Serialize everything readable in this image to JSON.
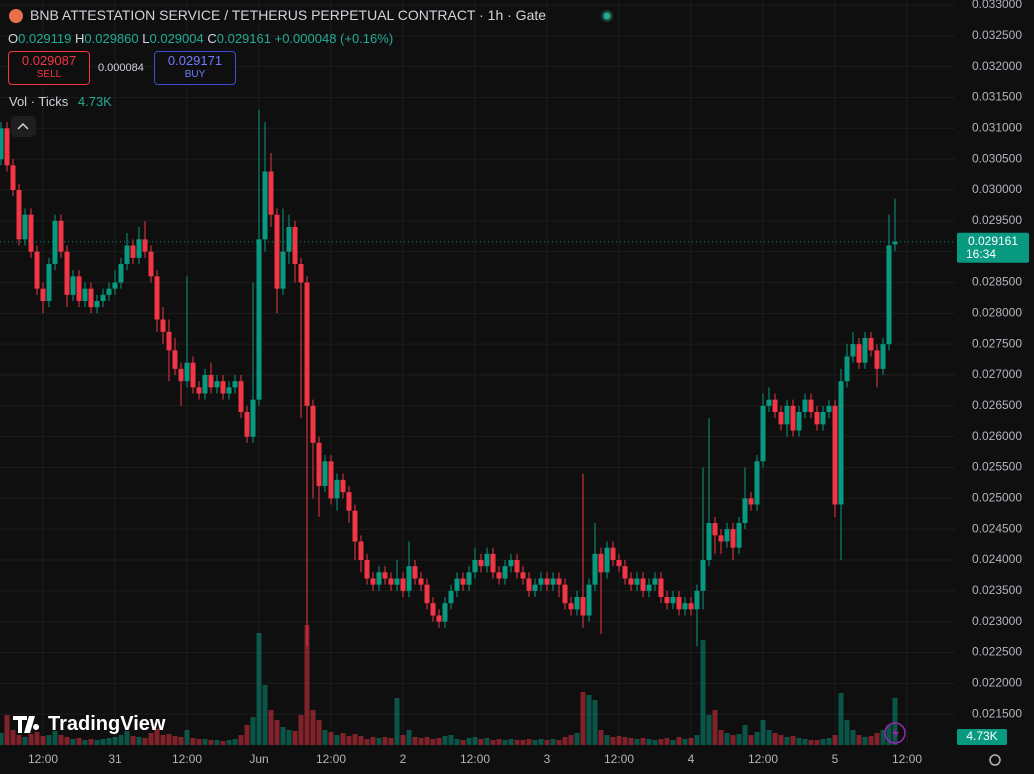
{
  "header": {
    "title": "BNB ATTESTATION SERVICE / TETHERUS PERPETUAL CONTRACT · 1h · Gate",
    "ohlc": {
      "o_label": "O",
      "o": "0.029119",
      "h_label": "H",
      "h": "0.029860",
      "l_label": "L",
      "l": "0.029004",
      "c_label": "C",
      "c": "0.029161",
      "change": "+0.000048 (+0.16%)"
    },
    "sell": {
      "price": "0.029087",
      "label": "SELL"
    },
    "spread": "0.000084",
    "buy": {
      "price": "0.029171",
      "label": "BUY"
    },
    "volume_indicator": "Vol · Ticks",
    "logo": "TradingView"
  },
  "chart_data": {
    "type": "candlestick",
    "up_color": "#089981",
    "down_color": "#f23645",
    "grid": true,
    "open": [
      0.0305,
      0.031,
      0.0304,
      0.03,
      0.0292,
      0.0296,
      0.029,
      0.0284,
      0.0282,
      0.0288,
      0.0295,
      0.029,
      0.0283,
      0.0286,
      0.0282,
      0.0284,
      0.0281,
      0.0282,
      0.0283,
      0.0284,
      0.0285,
      0.0288,
      0.0291,
      0.0289,
      0.0292,
      0.029,
      0.0286,
      0.0279,
      0.0277,
      0.0274,
      0.0271,
      0.0269,
      0.0272,
      0.0268,
      0.0267,
      0.027,
      0.0268,
      0.0269,
      0.0267,
      0.0268,
      0.0269,
      0.0264,
      0.026,
      0.0266,
      0.0292,
      0.0303,
      0.0296,
      0.0284,
      0.029,
      0.0294,
      0.0288,
      0.0285,
      0.0265,
      0.0259,
      0.0252,
      0.0256,
      0.025,
      0.0253,
      0.0251,
      0.0248,
      0.0243,
      0.024,
      0.0237,
      0.0236,
      0.0238,
      0.0237,
      0.0236,
      0.0237,
      0.0235,
      0.0239,
      0.0237,
      0.0236,
      0.0233,
      0.0231,
      0.023,
      0.0233,
      0.0235,
      0.0237,
      0.0236,
      0.0238,
      0.024,
      0.0239,
      0.0241,
      0.0238,
      0.0237,
      0.0239,
      0.024,
      0.0238,
      0.0237,
      0.0235,
      0.0236,
      0.0237,
      0.0236,
      0.0237,
      0.0236,
      0.0233,
      0.0232,
      0.0234,
      0.0231,
      0.0236,
      0.0241,
      0.0238,
      0.0242,
      0.024,
      0.0239,
      0.0237,
      0.0236,
      0.0237,
      0.0235,
      0.0236,
      0.0237,
      0.0234,
      0.0233,
      0.0234,
      0.0232,
      0.0233,
      0.0232,
      0.0235,
      0.024,
      0.0246,
      0.0244,
      0.0243,
      0.0245,
      0.0242,
      0.0246,
      0.025,
      0.0249,
      0.0256,
      0.0265,
      0.0266,
      0.0264,
      0.0262,
      0.0265,
      0.0261,
      0.0264,
      0.0266,
      0.0264,
      0.0262,
      0.0264,
      0.0265,
      0.0249,
      0.0269,
      0.0273,
      0.0275,
      0.0272,
      0.0276,
      0.0274,
      0.0271,
      0.0275,
      0.029119
    ],
    "high": [
      0.0311,
      0.0311,
      0.0305,
      0.0301,
      0.0297,
      0.0297,
      0.0291,
      0.0285,
      0.0289,
      0.0296,
      0.0296,
      0.0291,
      0.0287,
      0.0287,
      0.0285,
      0.0285,
      0.0283,
      0.0284,
      0.0285,
      0.0287,
      0.0289,
      0.0293,
      0.0292,
      0.0294,
      0.0295,
      0.0291,
      0.0287,
      0.0281,
      0.0279,
      0.0276,
      0.0272,
      0.0286,
      0.0273,
      0.0269,
      0.0271,
      0.0272,
      0.027,
      0.027,
      0.0269,
      0.027,
      0.027,
      0.0265,
      0.0285,
      0.0313,
      0.0311,
      0.0306,
      0.0297,
      0.0297,
      0.0296,
      0.0295,
      0.0289,
      0.0286,
      0.0266,
      0.026,
      0.0257,
      0.0257,
      0.0254,
      0.0254,
      0.0252,
      0.0249,
      0.0244,
      0.0241,
      0.0238,
      0.0239,
      0.0239,
      0.0238,
      0.024,
      0.0238,
      0.0243,
      0.024,
      0.0238,
      0.0237,
      0.0234,
      0.0232,
      0.0234,
      0.0236,
      0.0238,
      0.0238,
      0.0239,
      0.0242,
      0.0241,
      0.0242,
      0.0242,
      0.0239,
      0.024,
      0.0241,
      0.0241,
      0.0239,
      0.0238,
      0.0237,
      0.0238,
      0.0238,
      0.0238,
      0.0238,
      0.0237,
      0.0234,
      0.0235,
      0.0254,
      0.0237,
      0.0246,
      0.0242,
      0.0243,
      0.0243,
      0.0241,
      0.024,
      0.0238,
      0.0238,
      0.0238,
      0.0237,
      0.0238,
      0.0238,
      0.0235,
      0.0235,
      0.0235,
      0.0234,
      0.0234,
      0.0236,
      0.0255,
      0.0263,
      0.0247,
      0.0245,
      0.0246,
      0.0246,
      0.0247,
      0.0255,
      0.0251,
      0.0257,
      0.0267,
      0.0268,
      0.0267,
      0.0265,
      0.0266,
      0.0266,
      0.0265,
      0.0267,
      0.0267,
      0.0265,
      0.0265,
      0.0266,
      0.0266,
      0.0271,
      0.0275,
      0.0277,
      0.0276,
      0.0277,
      0.0277,
      0.0275,
      0.0276,
      0.0296,
      0.02986
    ],
    "low": [
      0.0304,
      0.0303,
      0.0299,
      0.0291,
      0.0291,
      0.0289,
      0.0283,
      0.028,
      0.0281,
      0.0287,
      0.0289,
      0.0281,
      0.0282,
      0.0281,
      0.0281,
      0.028,
      0.028,
      0.0281,
      0.0282,
      0.0283,
      0.0284,
      0.0287,
      0.0288,
      0.0288,
      0.0289,
      0.0285,
      0.0277,
      0.0275,
      0.0269,
      0.027,
      0.0265,
      0.0268,
      0.0267,
      0.0266,
      0.0266,
      0.0267,
      0.0267,
      0.0266,
      0.0266,
      0.0267,
      0.0263,
      0.0259,
      0.0259,
      0.0265,
      0.029,
      0.0294,
      0.028,
      0.0283,
      0.0288,
      0.0285,
      0.0263,
      0.0226,
      0.025,
      0.0247,
      0.0251,
      0.0249,
      0.0248,
      0.025,
      0.0246,
      0.024,
      0.0238,
      0.0236,
      0.0235,
      0.0235,
      0.0236,
      0.0235,
      0.0235,
      0.0234,
      0.0234,
      0.0236,
      0.0235,
      0.0232,
      0.023,
      0.0229,
      0.0229,
      0.0232,
      0.0234,
      0.0235,
      0.0235,
      0.0237,
      0.0238,
      0.0238,
      0.0237,
      0.0236,
      0.0236,
      0.0238,
      0.0237,
      0.0236,
      0.0234,
      0.0234,
      0.0235,
      0.0235,
      0.0235,
      0.0234,
      0.0232,
      0.0231,
      0.0231,
      0.0229,
      0.023,
      0.0235,
      0.0228,
      0.0237,
      0.0239,
      0.0238,
      0.0236,
      0.0235,
      0.0235,
      0.0234,
      0.0234,
      0.0235,
      0.0233,
      0.0232,
      0.0232,
      0.0231,
      0.0231,
      0.0231,
      0.0226,
      0.0232,
      0.0239,
      0.0241,
      0.0241,
      0.0242,
      0.024,
      0.0241,
      0.0245,
      0.0248,
      0.0248,
      0.0255,
      0.0264,
      0.0263,
      0.0261,
      0.026,
      0.026,
      0.026,
      0.0263,
      0.0263,
      0.0261,
      0.0261,
      0.0263,
      0.0247,
      0.024,
      0.0268,
      0.0272,
      0.0271,
      0.0271,
      0.0273,
      0.0268,
      0.027,
      0.0274,
      0.029004
    ],
    "close": [
      0.031,
      0.0304,
      0.03,
      0.0292,
      0.0296,
      0.029,
      0.0284,
      0.0282,
      0.0288,
      0.0295,
      0.029,
      0.0283,
      0.0286,
      0.0282,
      0.0284,
      0.0281,
      0.0282,
      0.0283,
      0.0284,
      0.0285,
      0.0288,
      0.0291,
      0.0289,
      0.0292,
      0.029,
      0.0286,
      0.0279,
      0.0277,
      0.0274,
      0.0271,
      0.0269,
      0.0272,
      0.0268,
      0.0267,
      0.027,
      0.0268,
      0.0269,
      0.0267,
      0.0268,
      0.0269,
      0.0264,
      0.026,
      0.0266,
      0.0292,
      0.0303,
      0.0296,
      0.0284,
      0.029,
      0.0294,
      0.0288,
      0.0285,
      0.0265,
      0.0259,
      0.0252,
      0.0256,
      0.025,
      0.0253,
      0.0251,
      0.0248,
      0.0243,
      0.024,
      0.0237,
      0.0236,
      0.0238,
      0.0237,
      0.0236,
      0.0237,
      0.0235,
      0.0239,
      0.0237,
      0.0236,
      0.0233,
      0.0231,
      0.023,
      0.0233,
      0.0235,
      0.0237,
      0.0236,
      0.0238,
      0.024,
      0.0239,
      0.0241,
      0.0238,
      0.0237,
      0.0239,
      0.024,
      0.0238,
      0.0237,
      0.0235,
      0.0236,
      0.0237,
      0.0236,
      0.0237,
      0.0236,
      0.0233,
      0.0232,
      0.0234,
      0.0231,
      0.0236,
      0.0241,
      0.0238,
      0.0242,
      0.024,
      0.0239,
      0.0237,
      0.0236,
      0.0237,
      0.0235,
      0.0236,
      0.0237,
      0.0234,
      0.0233,
      0.0234,
      0.0232,
      0.0233,
      0.0232,
      0.0235,
      0.024,
      0.0246,
      0.0244,
      0.0243,
      0.0245,
      0.0242,
      0.0246,
      0.025,
      0.0249,
      0.0256,
      0.0265,
      0.0266,
      0.0264,
      0.0262,
      0.0265,
      0.0261,
      0.0264,
      0.0266,
      0.0264,
      0.0262,
      0.0264,
      0.0265,
      0.0249,
      0.0269,
      0.0273,
      0.0275,
      0.0272,
      0.0276,
      0.0274,
      0.0271,
      0.0275,
      0.0291,
      0.029161
    ],
    "volume": [
      1.2,
      3.0,
      1.5,
      1.0,
      0.8,
      1.1,
      1.3,
      0.9,
      1.0,
      1.4,
      1.0,
      0.8,
      0.6,
      0.7,
      0.5,
      0.6,
      0.5,
      0.6,
      0.7,
      0.8,
      1.0,
      1.4,
      0.9,
      0.8,
      0.7,
      1.2,
      1.6,
      1.0,
      1.1,
      0.9,
      0.8,
      1.5,
      0.7,
      0.6,
      0.6,
      0.5,
      0.5,
      0.4,
      0.5,
      0.6,
      1.0,
      2.0,
      2.8,
      11.2,
      6.0,
      3.5,
      2.5,
      1.8,
      1.5,
      1.4,
      3.0,
      12.0,
      3.5,
      2.5,
      1.5,
      1.3,
      1.0,
      1.2,
      0.9,
      1.1,
      0.9,
      0.6,
      0.8,
      0.7,
      0.8,
      0.7,
      4.7,
      1.0,
      1.5,
      0.8,
      0.7,
      0.8,
      0.6,
      0.7,
      0.9,
      1.0,
      0.6,
      0.5,
      0.7,
      0.8,
      0.6,
      0.7,
      0.5,
      0.6,
      0.5,
      0.6,
      0.5,
      0.5,
      0.6,
      0.5,
      0.6,
      0.5,
      0.6,
      0.5,
      0.8,
      1.0,
      1.2,
      5.3,
      5.0,
      4.5,
      1.5,
      1.0,
      0.8,
      0.9,
      0.8,
      0.7,
      0.6,
      0.7,
      0.6,
      0.5,
      0.6,
      0.7,
      0.5,
      0.8,
      0.6,
      0.7,
      1.0,
      10.5,
      3.0,
      3.5,
      1.5,
      1.2,
      1.0,
      1.1,
      2.0,
      1.0,
      1.3,
      2.5,
      1.5,
      1.2,
      1.0,
      0.8,
      0.9,
      0.7,
      0.6,
      0.5,
      0.5,
      0.6,
      0.7,
      1.0,
      5.2,
      2.5,
      1.5,
      1.0,
      0.8,
      0.9,
      1.2,
      1.5,
      2.0,
      4.73
    ],
    "volume_label": "4.73K",
    "countdown": "16:34",
    "xlim": [
      0,
      159
    ],
    "xticks": [
      {
        "value": 7,
        "label": "12:00"
      },
      {
        "value": 19,
        "label": "31"
      },
      {
        "value": 31,
        "label": "12:00"
      },
      {
        "value": 43,
        "label": "Jun"
      },
      {
        "value": 55,
        "label": "12:00"
      },
      {
        "value": 67,
        "label": "2"
      },
      {
        "value": 79,
        "label": "12:00"
      },
      {
        "value": 91,
        "label": "3"
      },
      {
        "value": 103,
        "label": "12:00"
      },
      {
        "value": 115,
        "label": "4"
      },
      {
        "value": 127,
        "label": "12:00"
      },
      {
        "value": 139,
        "label": "5"
      },
      {
        "value": 151,
        "label": "12:00"
      }
    ],
    "ylim": [
      0.021,
      0.033
    ],
    "yticks": [
      {
        "value": 0.0215,
        "label": "0.021500"
      },
      {
        "value": 0.022,
        "label": "0.022000"
      },
      {
        "value": 0.0225,
        "label": "0.022500"
      },
      {
        "value": 0.023,
        "label": "0.023000"
      },
      {
        "value": 0.0235,
        "label": "0.023500"
      },
      {
        "value": 0.024,
        "label": "0.024000"
      },
      {
        "value": 0.0245,
        "label": "0.024500"
      },
      {
        "value": 0.025,
        "label": "0.025000"
      },
      {
        "value": 0.0255,
        "label": "0.025500"
      },
      {
        "value": 0.026,
        "label": "0.026000"
      },
      {
        "value": 0.0265,
        "label": "0.026500"
      },
      {
        "value": 0.027,
        "label": "0.027000"
      },
      {
        "value": 0.0275,
        "label": "0.027500"
      },
      {
        "value": 0.028,
        "label": "0.028000"
      },
      {
        "value": 0.0285,
        "label": "0.028500"
      },
      {
        "value": 0.029,
        "label": "0.029000"
      },
      {
        "value": 0.0295,
        "label": "0.029500"
      },
      {
        "value": 0.03,
        "label": "0.030000"
      },
      {
        "value": 0.0305,
        "label": "0.030500"
      },
      {
        "value": 0.031,
        "label": "0.031000"
      },
      {
        "value": 0.0315,
        "label": "0.031500"
      },
      {
        "value": 0.032,
        "label": "0.032000"
      },
      {
        "value": 0.0325,
        "label": "0.032500"
      },
      {
        "value": 0.033,
        "label": "0.033000"
      }
    ]
  }
}
